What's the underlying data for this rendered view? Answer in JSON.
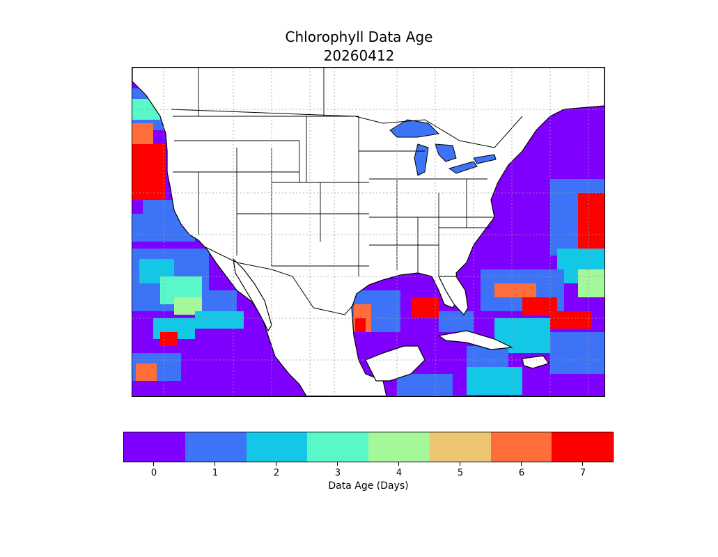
{
  "title": "Chlorophyll Data Age",
  "date": "20260412",
  "colorbar": {
    "label": "Data Age (Days)",
    "ticks": [
      "0",
      "1",
      "2",
      "3",
      "4",
      "5",
      "6",
      "7"
    ],
    "colors": [
      "#7f00ff",
      "#3d73f6",
      "#12c8e6",
      "#5af8c8",
      "#a4f89a",
      "#ecc672",
      "#ff6e3a",
      "#ff0000"
    ]
  },
  "map": {
    "land_color": "#ffffff",
    "lake_color": "#3d73f6",
    "coastline_color": "#000000",
    "gridlines": "dotted",
    "region": "Continental United States, Mexico, Gulf of Mexico, Caribbean"
  }
}
